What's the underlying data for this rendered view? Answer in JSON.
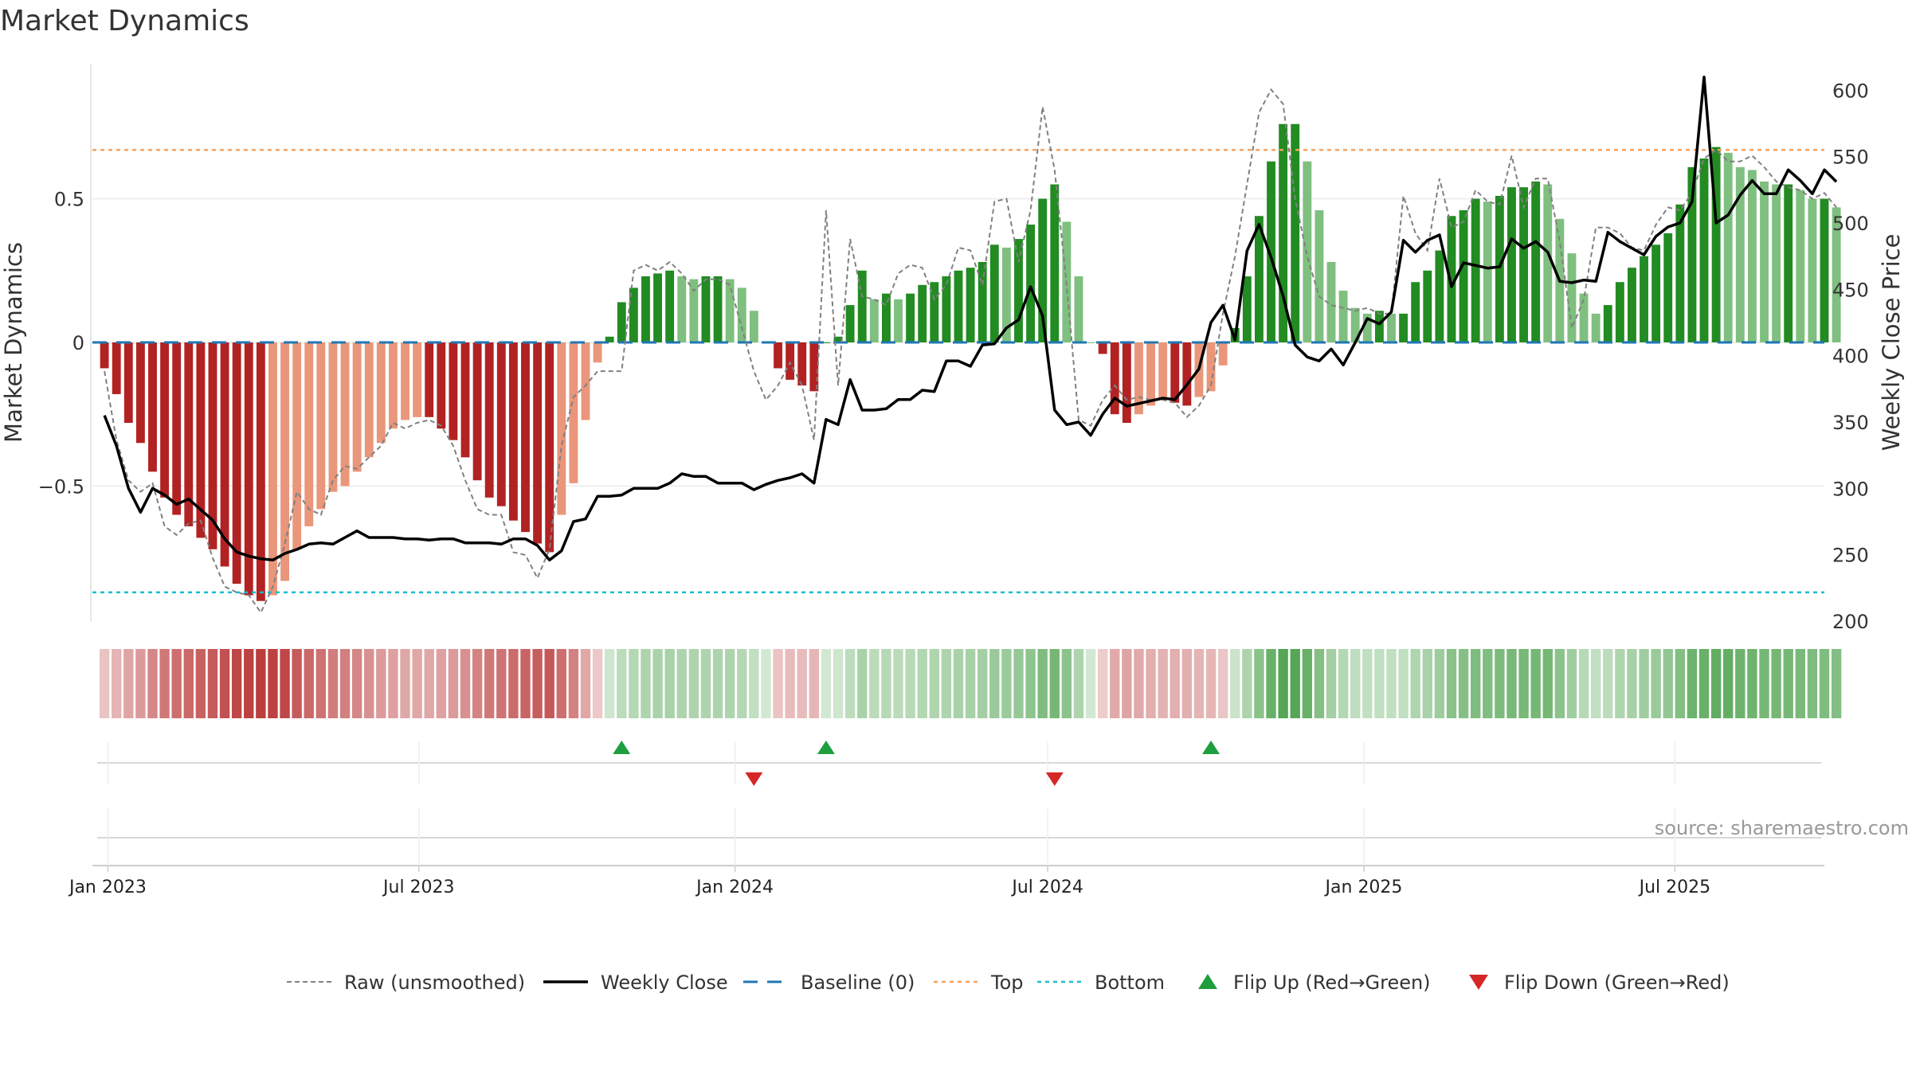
{
  "chart_data": {
    "type": "bar",
    "title": "Market Dynamics",
    "ylabel": "Market Dynamics",
    "y2label": "Weekly Close Price",
    "ylim": [
      -0.97,
      0.97
    ],
    "y2lim": [
      200,
      620
    ],
    "yticks": [
      0.5,
      0,
      -0.5
    ],
    "ytick_labels": [
      "0.5",
      "0",
      "−0.5"
    ],
    "y2ticks": [
      200,
      250,
      300,
      350,
      400,
      450,
      500,
      550,
      600
    ],
    "y2tick_labels": [
      "200",
      "250",
      "300",
      "350",
      "400",
      "450",
      "500",
      "550",
      "600"
    ],
    "x_start": "2022-12-23",
    "x_end": "2025-09-26",
    "xticks": [
      "2023-01-01",
      "2023-07-01",
      "2024-01-01",
      "2024-07-01",
      "2025-01-01",
      "2025-07-01"
    ],
    "xtick_labels": [
      "Jan 2023",
      "Jul 2023",
      "Jan 2024",
      "Jul 2024",
      "Jan 2025",
      "Jul 2025"
    ],
    "first_week": "2022-12-30",
    "levels": {
      "top": 0.67,
      "bottom": -0.87,
      "baseline": 0
    },
    "grid": true,
    "legend_position": "bottom",
    "colors": {
      "red_strong": "#b22222",
      "red_weak": "#e9967a",
      "green_strong": "#228b22",
      "green_weak": "#7fbf7f",
      "close": "#000000",
      "raw": "#808080",
      "baseline": "#1f77b4",
      "top": "#f4a460",
      "bottom": "#17becf",
      "flip_up": "#1e9e3e",
      "flip_down": "#d62728"
    },
    "series": [
      {
        "name": "Market Dynamics",
        "values": [
          -0.09,
          -0.18,
          -0.28,
          -0.35,
          -0.45,
          -0.54,
          -0.6,
          -0.64,
          -0.68,
          -0.72,
          -0.78,
          -0.84,
          -0.88,
          -0.9,
          -0.88,
          -0.83,
          -0.72,
          -0.64,
          -0.58,
          -0.52,
          -0.5,
          -0.45,
          -0.4,
          -0.35,
          -0.3,
          -0.27,
          -0.26,
          -0.26,
          -0.3,
          -0.34,
          -0.4,
          -0.48,
          -0.54,
          -0.57,
          -0.62,
          -0.66,
          -0.7,
          -0.73,
          -0.6,
          -0.49,
          -0.27,
          -0.07,
          0.02,
          0.14,
          0.19,
          0.23,
          0.24,
          0.25,
          0.23,
          0.22,
          0.23,
          0.23,
          0.22,
          0.19,
          0.11,
          0,
          -0.09,
          -0.13,
          -0.15,
          -0.17,
          0,
          0.02,
          0.13,
          0.25,
          0.15,
          0.17,
          0.15,
          0.17,
          0.2,
          0.21,
          0.23,
          0.25,
          0.26,
          0.28,
          0.34,
          0.33,
          0.36,
          0.41,
          0.5,
          0.55,
          0.42,
          0.23,
          0,
          -0.04,
          -0.25,
          -0.28,
          -0.25,
          -0.22,
          -0.2,
          -0.21,
          -0.22,
          -0.19,
          -0.17,
          -0.08,
          0.05,
          0.23,
          0.44,
          0.63,
          0.76,
          0.76,
          0.63,
          0.46,
          0.28,
          0.18,
          0.12,
          0.1,
          0.11,
          0.1,
          0.1,
          0.21,
          0.25,
          0.32,
          0.44,
          0.46,
          0.5,
          0.49,
          0.51,
          0.54,
          0.54,
          0.56,
          0.55,
          0.43,
          0.31,
          0.17,
          0.1,
          0.13,
          0.21,
          0.26,
          0.3,
          0.34,
          0.38,
          0.48,
          0.61,
          0.64,
          0.68,
          0.66,
          0.61,
          0.6,
          0.56,
          0.55,
          0.55,
          0.53,
          0.5,
          0.5,
          0.47
        ]
      },
      {
        "name": "Raw (unsmoothed)",
        "values": [
          -0.1,
          -0.34,
          -0.48,
          -0.52,
          -0.49,
          -0.64,
          -0.67,
          -0.63,
          -0.62,
          -0.75,
          -0.85,
          -0.87,
          -0.88,
          -0.94,
          -0.85,
          -0.7,
          -0.52,
          -0.58,
          -0.6,
          -0.48,
          -0.43,
          -0.44,
          -0.4,
          -0.36,
          -0.28,
          -0.3,
          -0.28,
          -0.27,
          -0.29,
          -0.36,
          -0.48,
          -0.58,
          -0.6,
          -0.6,
          -0.73,
          -0.74,
          -0.82,
          -0.72,
          -0.36,
          -0.19,
          -0.15,
          -0.1,
          -0.1,
          -0.1,
          0.25,
          0.27,
          0.25,
          0.28,
          0.24,
          0.18,
          0.22,
          0.22,
          0.2,
          0.05,
          -0.1,
          -0.2,
          -0.15,
          -0.07,
          -0.15,
          -0.34,
          0.46,
          -0.15,
          0.36,
          0.16,
          0.15,
          0.13,
          0.24,
          0.27,
          0.26,
          0.15,
          0.2,
          0.33,
          0.32,
          0.2,
          0.49,
          0.5,
          0.28,
          0.46,
          0.82,
          0.6,
          0.2,
          -0.27,
          -0.29,
          -0.2,
          -0.15,
          -0.2,
          -0.19,
          -0.2,
          -0.2,
          -0.21,
          -0.26,
          -0.22,
          -0.15,
          0.1,
          0.3,
          0.55,
          0.8,
          0.88,
          0.83,
          0.5,
          0.3,
          0.16,
          0.13,
          0.12,
          0.11,
          0.12,
          0.1,
          0.1,
          0.51,
          0.38,
          0.32,
          0.57,
          0.4,
          0.42,
          0.53,
          0.49,
          0.48,
          0.65,
          0.47,
          0.57,
          0.57,
          0.35,
          0.05,
          0.15,
          0.4,
          0.4,
          0.38,
          0.33,
          0.32,
          0.41,
          0.47,
          0.46,
          0.52,
          0.64,
          0.67,
          0.63,
          0.63,
          0.65,
          0.61,
          0.56,
          0.54,
          0.53,
          0.5,
          0.52,
          0.47
        ]
      },
      {
        "name": "Weekly Close",
        "values": [
          355,
          332,
          300,
          282,
          300,
          295,
          288,
          292,
          284,
          276,
          262,
          252,
          249,
          247,
          246,
          251,
          254,
          258,
          259,
          258,
          263,
          268,
          263,
          263,
          263,
          262,
          262,
          261,
          262,
          262,
          259,
          259,
          259,
          258,
          262,
          262,
          257,
          246,
          253,
          275,
          277,
          294,
          294,
          295,
          300,
          300,
          300,
          304,
          311,
          309,
          309,
          304,
          304,
          304,
          299,
          303,
          306,
          308,
          311,
          304,
          352,
          348,
          382,
          359,
          359,
          360,
          367,
          367,
          374,
          373,
          396,
          396,
          392,
          408,
          409,
          421,
          427,
          452,
          430,
          359,
          348,
          350,
          340,
          356,
          368,
          362,
          364,
          366,
          368,
          367,
          378,
          390,
          425,
          438,
          412,
          479,
          499,
          474,
          445,
          408,
          399,
          396,
          405,
          393,
          410,
          428,
          424,
          433,
          487,
          478,
          487,
          491,
          452,
          470,
          468,
          466,
          467,
          488,
          481,
          486,
          478,
          456,
          455,
          457,
          456,
          493,
          486,
          481,
          476,
          490,
          497,
          500,
          516,
          610,
          500,
          506,
          521,
          532,
          522,
          522,
          540,
          532,
          522,
          540,
          531
        ]
      },
      {
        "name": "Baseline (0)"
      },
      {
        "name": "Top"
      },
      {
        "name": "Bottom"
      },
      {
        "name": "Flip Up (Red→Green)",
        "dates": [
          "2023-10-27",
          "2024-02-23",
          "2024-10-04"
        ]
      },
      {
        "name": "Flip Down (Green→Red)",
        "dates": [
          "2024-01-12",
          "2024-07-05"
        ]
      }
    ],
    "source": "source: sharemaestro.com"
  }
}
